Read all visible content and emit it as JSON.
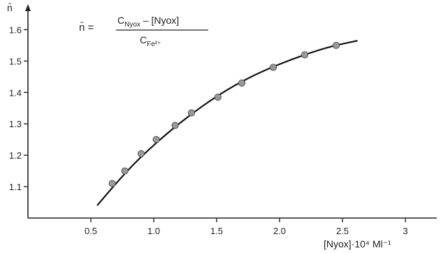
{
  "chart_data": {
    "type": "scatter",
    "title": "",
    "xlabel": "[Nyox]·10⁴ Ml⁻¹",
    "ylabel": "n̄",
    "xlim": [
      0,
      3.3
    ],
    "ylim": [
      1.0,
      1.65
    ],
    "grid": false,
    "x_ticks": [
      0.5,
      1.0,
      1.5,
      2.0,
      2.5,
      3.0
    ],
    "x_tick_labels": [
      "0.5",
      "1.0",
      "1.5",
      "2.0",
      "2.5",
      "3"
    ],
    "y_ticks": [
      1.1,
      1.2,
      1.3,
      1.4,
      1.5,
      1.6
    ],
    "y_tick_labels": [
      "1.1",
      "1.2",
      "1.3",
      "1.4",
      "1.5",
      "1.6"
    ],
    "series": [
      {
        "points": [
          {
            "x": 0.67,
            "y": 1.11
          },
          {
            "x": 0.77,
            "y": 1.15
          },
          {
            "x": 0.9,
            "y": 1.205
          },
          {
            "x": 1.02,
            "y": 1.25
          },
          {
            "x": 1.17,
            "y": 1.295
          },
          {
            "x": 1.3,
            "y": 1.335
          },
          {
            "x": 1.51,
            "y": 1.385
          },
          {
            "x": 1.7,
            "y": 1.43
          },
          {
            "x": 1.95,
            "y": 1.48
          },
          {
            "x": 2.2,
            "y": 1.52
          },
          {
            "x": 2.45,
            "y": 1.55
          }
        ],
        "color": "#9a9a9a"
      }
    ],
    "fit_curve": {
      "points": [
        {
          "x": 0.55,
          "y": 1.04
        },
        {
          "x": 0.7,
          "y": 1.11
        },
        {
          "x": 0.85,
          "y": 1.175
        },
        {
          "x": 1.0,
          "y": 1.232
        },
        {
          "x": 1.2,
          "y": 1.3
        },
        {
          "x": 1.4,
          "y": 1.36
        },
        {
          "x": 1.6,
          "y": 1.412
        },
        {
          "x": 1.8,
          "y": 1.455
        },
        {
          "x": 2.0,
          "y": 1.49
        },
        {
          "x": 2.2,
          "y": 1.52
        },
        {
          "x": 2.4,
          "y": 1.545
        },
        {
          "x": 2.62,
          "y": 1.565
        }
      ],
      "color": "#111111"
    },
    "annotation": {
      "lhs": "n̄ =",
      "numerator": {
        "c": "C",
        "c_sub": "Nyox",
        "rest": " – [Nyox]"
      },
      "denominator": {
        "c": "C",
        "c_sub": "Fe²⁺"
      }
    }
  }
}
